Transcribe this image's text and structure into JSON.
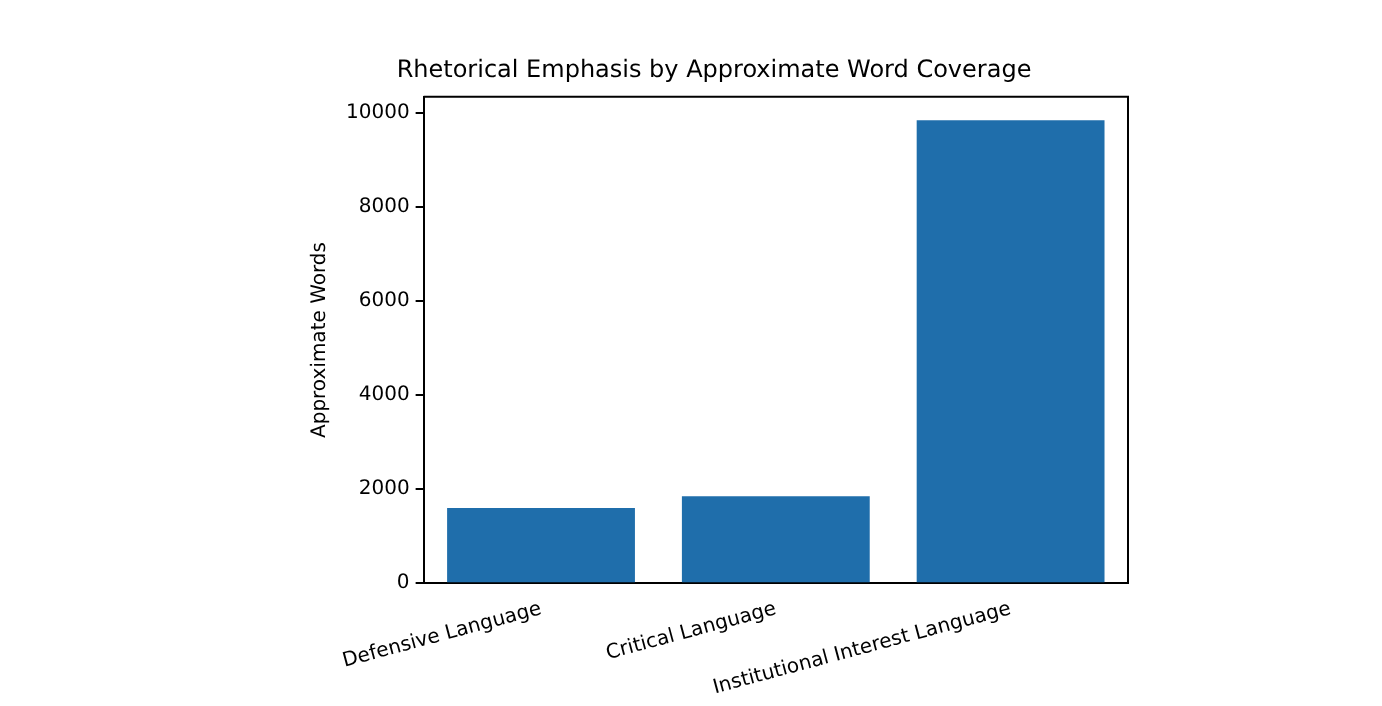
{
  "chart_data": {
    "type": "bar",
    "title": "Rhetorical Emphasis by Approximate Word Coverage",
    "ylabel": "Approximate Words",
    "categories": [
      "Defensive Language",
      "Critical Language",
      "Institutional Interest Language"
    ],
    "values": [
      1600,
      1850,
      9850
    ],
    "color": "#1f6eab",
    "ylim": [
      0,
      10350
    ],
    "yticks": [
      0,
      2000,
      4000,
      6000,
      8000,
      10000
    ],
    "grid": false,
    "legend": false
  }
}
